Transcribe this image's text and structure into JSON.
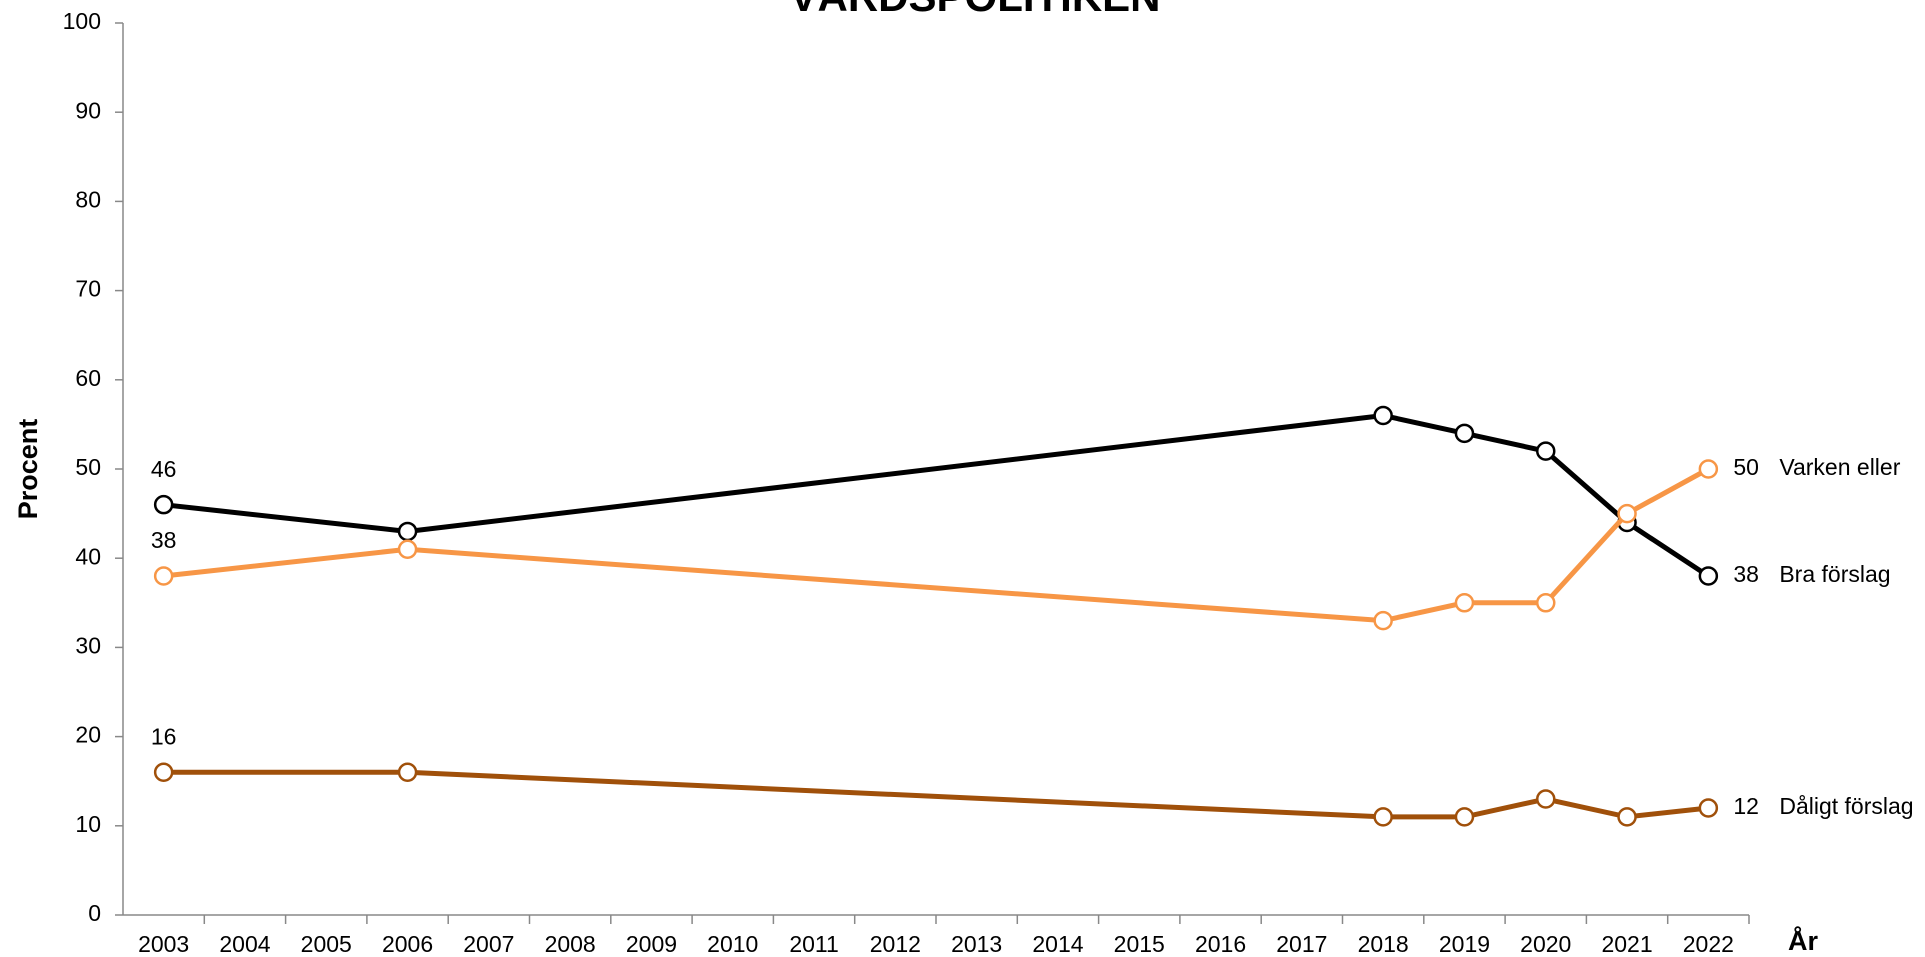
{
  "chart_data": {
    "type": "line",
    "title": "VÅRDSPOLITIKEN",
    "ylabel": "Procent",
    "xlabel": "År",
    "x": [
      2003,
      2006,
      2018,
      2019,
      2020,
      2021,
      2022
    ],
    "xlim": [
      2002.5,
      2022.5
    ],
    "xticks": [
      2003,
      2004,
      2005,
      2006,
      2007,
      2008,
      2009,
      2010,
      2011,
      2012,
      2013,
      2014,
      2015,
      2016,
      2017,
      2018,
      2019,
      2020,
      2021,
      2022
    ],
    "ylim": [
      0,
      100
    ],
    "yticks": [
      0,
      10,
      20,
      30,
      40,
      50,
      60,
      70,
      80,
      90,
      100
    ],
    "grid": false,
    "series": [
      {
        "name": "Bra förslag",
        "color": "#000000",
        "values": [
          46,
          43,
          56,
          54,
          52,
          44,
          38
        ]
      },
      {
        "name": "Varken eller",
        "color": "#f79646",
        "values": [
          38,
          41,
          33,
          35,
          35,
          45,
          50
        ]
      },
      {
        "name": "Dåligt förslag",
        "color": "#a0500a",
        "values": [
          16,
          16,
          11,
          11,
          13,
          11,
          12
        ]
      }
    ]
  }
}
